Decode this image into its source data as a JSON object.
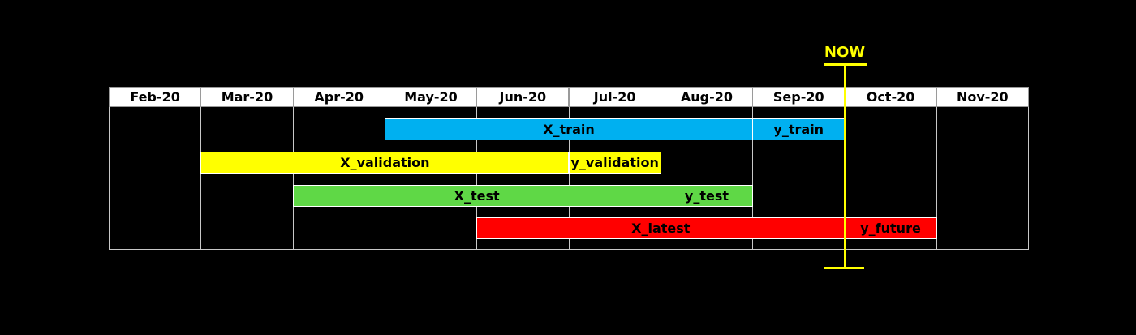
{
  "months": [
    "Feb-20",
    "Mar-20",
    "Apr-20",
    "May-20",
    "Jun-20",
    "Jul-20",
    "Aug-20",
    "Sep-20",
    "Oct-20",
    "Nov-20"
  ],
  "now": {
    "label": "NOW",
    "month_index": 8.0,
    "color": "#ffff00"
  },
  "rows": [
    {
      "segments": [
        {
          "label": "X_train",
          "start": 3,
          "end": 7,
          "color": "#00b0f0"
        },
        {
          "label": "y_train",
          "start": 7,
          "end": 8,
          "color": "#00b0f0"
        }
      ]
    },
    {
      "segments": [
        {
          "label": "X_validation",
          "start": 1,
          "end": 5,
          "color": "#ffff00"
        },
        {
          "label": "y_validation",
          "start": 5,
          "end": 6,
          "color": "#ffff00"
        }
      ]
    },
    {
      "segments": [
        {
          "label": "X_test",
          "start": 2,
          "end": 6,
          "color": "#5fd846"
        },
        {
          "label": "y_test",
          "start": 6,
          "end": 7,
          "color": "#5fd846"
        }
      ]
    },
    {
      "segments": [
        {
          "label": "X_latest",
          "start": 4,
          "end": 8,
          "color": "#ff0000"
        },
        {
          "label": "y_future",
          "start": 8,
          "end": 9,
          "color": "#ff0000"
        }
      ]
    }
  ]
}
